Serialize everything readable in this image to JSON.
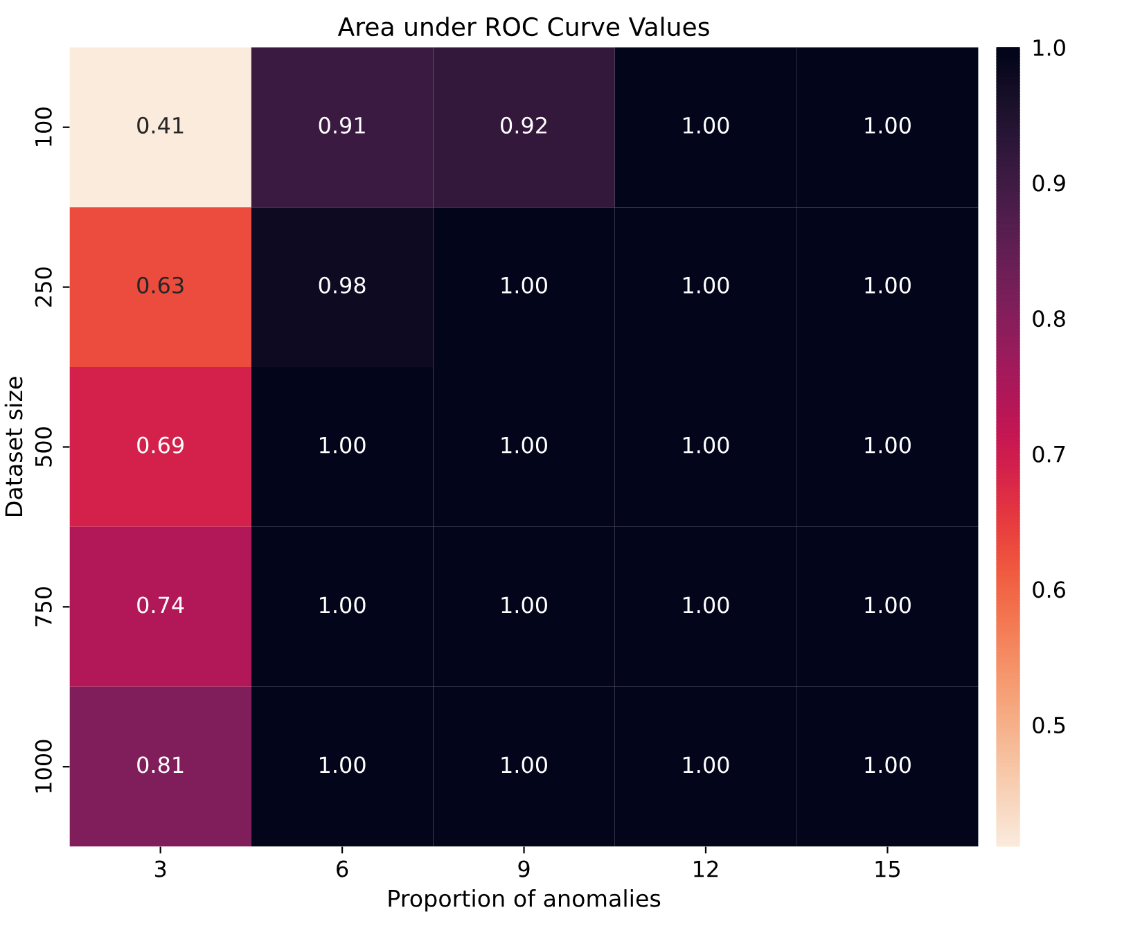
{
  "chart_data": {
    "type": "heatmap",
    "title": "Area under ROC Curve Values",
    "xlabel": "Proportion of anomalies",
    "ylabel": "Dataset size",
    "categories": [
      "3",
      "6",
      "9",
      "12",
      "15"
    ],
    "y_categories": [
      "100",
      "250",
      "500",
      "750",
      "1000"
    ],
    "cells": [
      [
        0.41,
        0.91,
        0.92,
        1.0,
        1.0
      ],
      [
        0.63,
        0.98,
        1.0,
        1.0,
        1.0
      ],
      [
        0.69,
        1.0,
        1.0,
        1.0,
        1.0
      ],
      [
        0.74,
        1.0,
        1.0,
        1.0,
        1.0
      ],
      [
        0.81,
        1.0,
        1.0,
        1.0,
        1.0
      ]
    ],
    "cell_labels": [
      [
        "0.41",
        "0.91",
        "0.92",
        "1.00",
        "1.00"
      ],
      [
        "0.63",
        "0.98",
        "1.00",
        "1.00",
        "1.00"
      ],
      [
        "0.69",
        "1.00",
        "1.00",
        "1.00",
        "1.00"
      ],
      [
        "0.74",
        "1.00",
        "1.00",
        "1.00",
        "1.00"
      ],
      [
        "0.81",
        "1.00",
        "1.00",
        "1.00",
        "1.00"
      ]
    ],
    "clim": [
      0.41,
      1.0
    ],
    "cticks": [
      0.5,
      0.6,
      0.7,
      0.8,
      0.9,
      {
        "value": 1,
        "label": "1.0"
      }
    ]
  }
}
